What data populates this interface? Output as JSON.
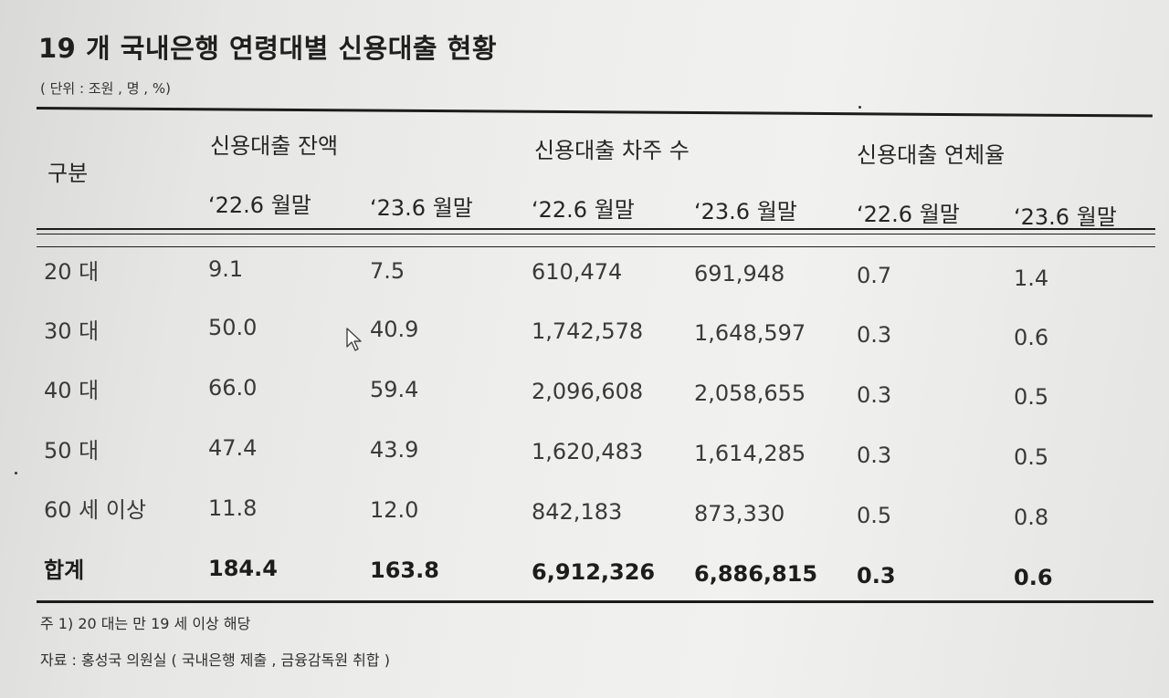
{
  "title": "19 개 국내은행 연령대별 신용대출 현황",
  "unit": "( 단위 : 조원 , 명 , %)",
  "header": {
    "category": "구분",
    "groups": [
      "신용대출 잔액",
      "신용대출 차주 수",
      "신용대출 연체율"
    ],
    "periods": [
      "‘22.6 월말",
      "‘23.6 월말",
      "‘22.6 월말",
      "‘23.6 월말",
      "‘22.6 월말",
      "‘23.6 월말"
    ]
  },
  "rows": [
    {
      "label": "20 대",
      "values": [
        "9.1",
        "7.5",
        "610,474",
        "691,948",
        "0.7",
        "1.4"
      ]
    },
    {
      "label": "30 대",
      "values": [
        "50.0",
        "40.9",
        "1,742,578",
        "1,648,597",
        "0.3",
        "0.6"
      ]
    },
    {
      "label": "40 대",
      "values": [
        "66.0",
        "59.4",
        "2,096,608",
        "2,058,655",
        "0.3",
        "0.5"
      ]
    },
    {
      "label": "50 대",
      "values": [
        "47.4",
        "43.9",
        "1,620,483",
        "1,614,285",
        "0.3",
        "0.5"
      ]
    },
    {
      "label": "60 세 이상",
      "values": [
        "11.8",
        "12.0",
        "842,183",
        "873,330",
        "0.5",
        "0.8"
      ]
    }
  ],
  "total": {
    "label": "합계",
    "values": [
      "184.4",
      "163.8",
      "6,912,326",
      "6,886,815",
      "0.3",
      "0.6"
    ]
  },
  "notes": {
    "footnote": "주 1) 20 대는 만 19 세 이상 해당",
    "source": "자료 : 홍성국 의원실 ( 국내은행 제출 , 금융감독원 취합 )"
  }
}
